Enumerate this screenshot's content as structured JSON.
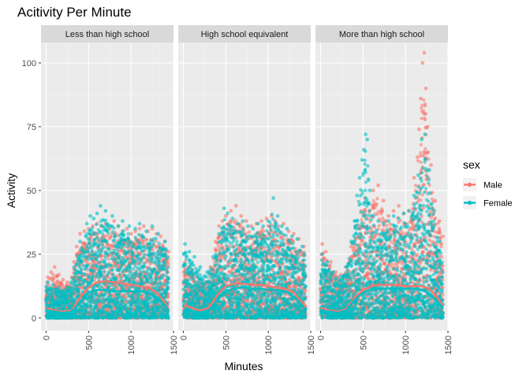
{
  "chart_data": {
    "type": "scatter",
    "title": "Acitivity Per Minute",
    "xlabel": "Minutes",
    "ylabel": "Activity",
    "xlim": [
      -60,
      1500
    ],
    "ylim": [
      -5,
      108
    ],
    "x_ticks": [
      0,
      500,
      1000,
      1500
    ],
    "x_tick_labels": [
      "0",
      "500",
      "1000",
      "1500"
    ],
    "y_ticks": [
      0,
      25,
      50,
      75,
      100
    ],
    "y_tick_labels": [
      "0",
      "25",
      "50",
      "75",
      "100"
    ],
    "grid": true,
    "legend": {
      "title": "sex",
      "position": "right"
    },
    "facets": [
      {
        "label": "Less than high school",
        "series": [
          {
            "name": "Male",
            "color": "#F8766D",
            "points_x": [
              20,
              60,
              100,
              150,
              200,
              250,
              300,
              330,
              360,
              400,
              450,
              500,
              550,
              600,
              650,
              700,
              750,
              800,
              850,
              900,
              950,
              1000,
              1050,
              1100,
              1150,
              1200,
              1250,
              1300,
              1350,
              1400,
              1440
            ],
            "points_y": [
              16,
              18,
              20,
              17,
              15,
              14,
              16,
              22,
              28,
              33,
              34,
              35,
              36,
              37,
              36,
              37,
              35,
              38,
              36,
              34,
              35,
              33,
              34,
              35,
              36,
              34,
              35,
              33,
              32,
              30,
              26
            ],
            "smooth_x": [
              0,
              100,
              200,
              300,
              400,
              500,
              600,
              700,
              800,
              900,
              1000,
              1100,
              1200,
              1300,
              1400,
              1440
            ],
            "smooth_y": [
              4,
              3,
              2.5,
              3,
              8,
              12,
              14,
              14.5,
              14,
              13.5,
              13,
              12.5,
              12,
              10,
              6,
              4
            ]
          },
          {
            "name": "Female",
            "color": "#00BFC4",
            "points_x": [
              20,
              80,
              150,
              250,
              330,
              400,
              480,
              520,
              560,
              600,
              640,
              700,
              780,
              850,
              900,
              980,
              1050,
              1100,
              1180,
              1250,
              1320,
              1400
            ],
            "points_y": [
              14,
              13,
              12,
              12,
              20,
              30,
              37,
              40,
              39,
              41,
              44,
              42,
              40,
              36,
              38,
              36,
              35,
              37,
              34,
              36,
              33,
              30
            ],
            "smooth_x": [
              0,
              100,
              200,
              300,
              400,
              500,
              600,
              700,
              800,
              900,
              1000,
              1100,
              1200,
              1300,
              1400,
              1440
            ],
            "smooth_y": [
              3,
              2.5,
              2,
              2.5,
              6,
              10,
              11,
              11,
              10.5,
              10.5,
              10.5,
              10.5,
              10,
              8,
              5,
              3
            ]
          }
        ]
      },
      {
        "label": "High school equivalent",
        "series": [
          {
            "name": "Male",
            "color": "#F8766D",
            "points_x": [
              20,
              60,
              100,
              150,
              200,
              260,
              320,
              380,
              420,
              460,
              500,
              560,
              620,
              680,
              740,
              800,
              860,
              920,
              980,
              1040,
              1080,
              1120,
              1180,
              1240,
              1300,
              1360,
              1420
            ],
            "points_y": [
              22,
              20,
              19,
              16,
              15,
              14,
              20,
              30,
              36,
              38,
              40,
              42,
              44,
              40,
              38,
              36,
              37,
              38,
              39,
              40,
              38,
              36,
              37,
              34,
              33,
              31,
              28
            ],
            "smooth_x": [
              0,
              100,
              200,
              300,
              400,
              500,
              600,
              700,
              800,
              900,
              1000,
              1100,
              1200,
              1300,
              1400,
              1440
            ],
            "smooth_y": [
              5,
              4,
              3,
              4,
              9,
              12.5,
              13.5,
              13.5,
              13,
              13,
              12.5,
              12,
              11.5,
              10,
              6,
              4
            ]
          },
          {
            "name": "Female",
            "color": "#00BFC4",
            "points_x": [
              20,
              70,
              130,
              200,
              280,
              350,
              420,
              480,
              520,
              580,
              640,
              700,
              760,
              820,
              880,
              940,
              1000,
              1060,
              1110,
              1160,
              1220,
              1280,
              1340,
              1400
            ],
            "points_y": [
              29,
              26,
              24,
              20,
              18,
              24,
              33,
              43,
              41,
              39,
              37,
              38,
              36,
              35,
              37,
              36,
              38,
              47,
              40,
              36,
              35,
              32,
              31,
              28
            ],
            "smooth_x": [
              0,
              100,
              200,
              300,
              400,
              500,
              600,
              700,
              800,
              900,
              1000,
              1100,
              1200,
              1300,
              1400,
              1440
            ],
            "smooth_y": [
              3,
              2.5,
              2,
              3,
              7,
              10.5,
              11.5,
              12,
              11.5,
              11.5,
              11,
              11,
              10.5,
              8.5,
              5,
              3
            ]
          }
        ]
      },
      {
        "label": "More than high school",
        "series": [
          {
            "name": "Male",
            "color": "#F8766D",
            "points_x": [
              20,
              60,
              120,
              180,
              240,
              300,
              360,
              420,
              480,
              520,
              560,
              620,
              680,
              740,
              800,
              860,
              920,
              980,
              1040,
              1100,
              1140,
              1160,
              1180,
              1200,
              1220,
              1240,
              1260,
              1300,
              1350,
              1400,
              1440
            ],
            "points_y": [
              29,
              26,
              22,
              18,
              17,
              20,
              28,
              36,
              42,
              47,
              45,
              50,
              52,
              46,
              40,
              42,
              44,
              41,
              42,
              55,
              63,
              74,
              86,
              100,
              104,
              90,
              75,
              60,
              46,
              38,
              32
            ],
            "smooth_x": [
              0,
              100,
              200,
              300,
              400,
              500,
              600,
              700,
              800,
              900,
              1000,
              1100,
              1200,
              1300,
              1400,
              1440
            ],
            "smooth_y": [
              4,
              3,
              2.5,
              3.5,
              8,
              11,
              12.5,
              13,
              13,
              13,
              12.5,
              12.5,
              12.5,
              11,
              7,
              5
            ]
          },
          {
            "name": "Female",
            "color": "#00BFC4",
            "points_x": [
              20,
              80,
              150,
              230,
              300,
              360,
              400,
              430,
              460,
              490,
              510,
              530,
              550,
              580,
              620,
              680,
              740,
              800,
              860,
              920,
              980,
              1040,
              1100,
              1150,
              1190,
              1230,
              1280,
              1340,
              1400
            ],
            "points_y": [
              25,
              22,
              18,
              16,
              20,
              30,
              38,
              48,
              55,
              62,
              66,
              72,
              70,
              50,
              40,
              38,
              37,
              38,
              40,
              39,
              41,
              42,
              48,
              56,
              70,
              72,
              58,
              42,
              30
            ],
            "smooth_x": [
              0,
              100,
              200,
              300,
              400,
              500,
              600,
              700,
              800,
              900,
              1000,
              1100,
              1200,
              1300,
              1400,
              1440
            ],
            "smooth_y": [
              3,
              2.5,
              2,
              3,
              7,
              10,
              11,
              11.5,
              11.5,
              11.5,
              11.5,
              11.5,
              11,
              9,
              5.5,
              3.5
            ]
          }
        ]
      }
    ]
  },
  "legend_items": [
    {
      "label": "Male",
      "color": "#F8766D"
    },
    {
      "label": "Female",
      "color": "#00BFC4"
    }
  ],
  "panel_background": "#EBEBEB",
  "strip_background": "#D9D9D9"
}
